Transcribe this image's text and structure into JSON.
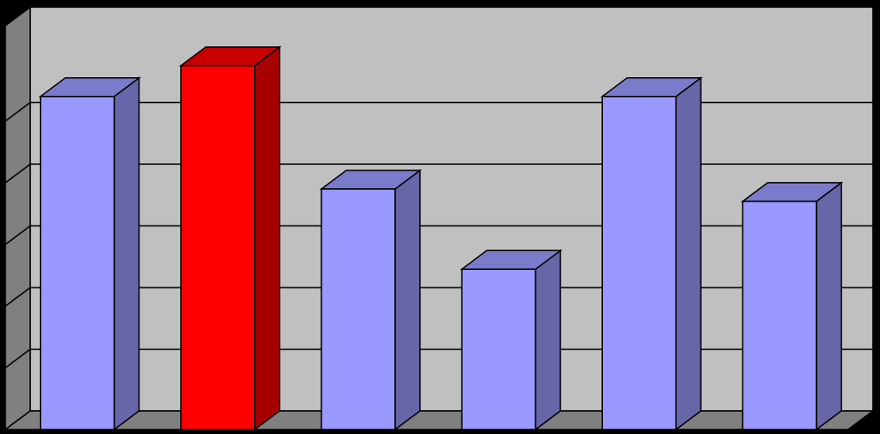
{
  "chart_data": {
    "type": "bar",
    "style": "3d-clustered-column",
    "categories": [
      "",
      "",
      "",
      "",
      "",
      ""
    ],
    "values": [
      5.4,
      5.9,
      3.9,
      2.6,
      5.4,
      3.7
    ],
    "ylim": [
      0,
      6
    ],
    "y_major_step": 1,
    "grid": true,
    "legend": "none",
    "title": "",
    "xlabel": "",
    "ylabel": "",
    "highlight_index": 1,
    "colors": {
      "background": "#000000",
      "back_wall": "#c0c0c0",
      "side_wall": "#808080",
      "floor": "#808080",
      "gridline": "#000000",
      "bar_front": "#9999ff",
      "bar_side": "#6666a8",
      "bar_top": "#7b7bcc",
      "highlight_front": "#ff0000",
      "highlight_side": "#a60000",
      "highlight_top": "#c80000",
      "outline": "#000000"
    }
  }
}
